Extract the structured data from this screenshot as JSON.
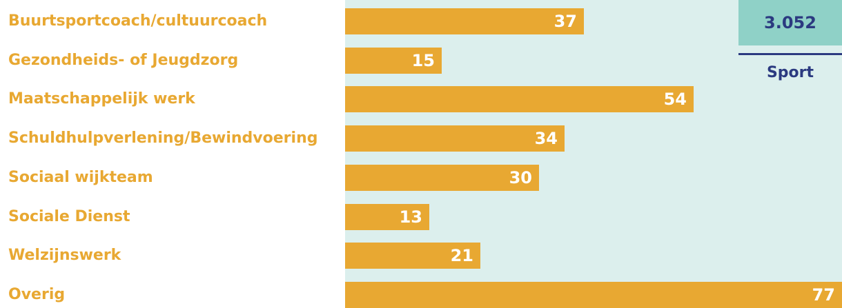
{
  "colors": {
    "bar": "#e8a832",
    "label": "#e8a832",
    "plot_background": "#dcefed",
    "total_box": "#8fd1c7",
    "total_text": "#2b3a80",
    "value_text": "#ffffff"
  },
  "chart_data": {
    "type": "bar",
    "orientation": "horizontal",
    "categories": [
      "Buurtsportcoach/cultuurcoach",
      "Gezondheids- of Jeugdzorg",
      "Maatschappelijk werk",
      "Schuldhulpverlening/Bewindvoering",
      "Sociaal wijkteam",
      "Sociale Dienst",
      "Welzijnswerk",
      "Overig"
    ],
    "values": [
      37,
      15,
      54,
      34,
      30,
      13,
      21,
      77
    ],
    "xlim": [
      0,
      77
    ],
    "grid": false,
    "legend": "none",
    "data_labels": true
  },
  "total": {
    "value": "3.052",
    "caption": "Sport"
  }
}
